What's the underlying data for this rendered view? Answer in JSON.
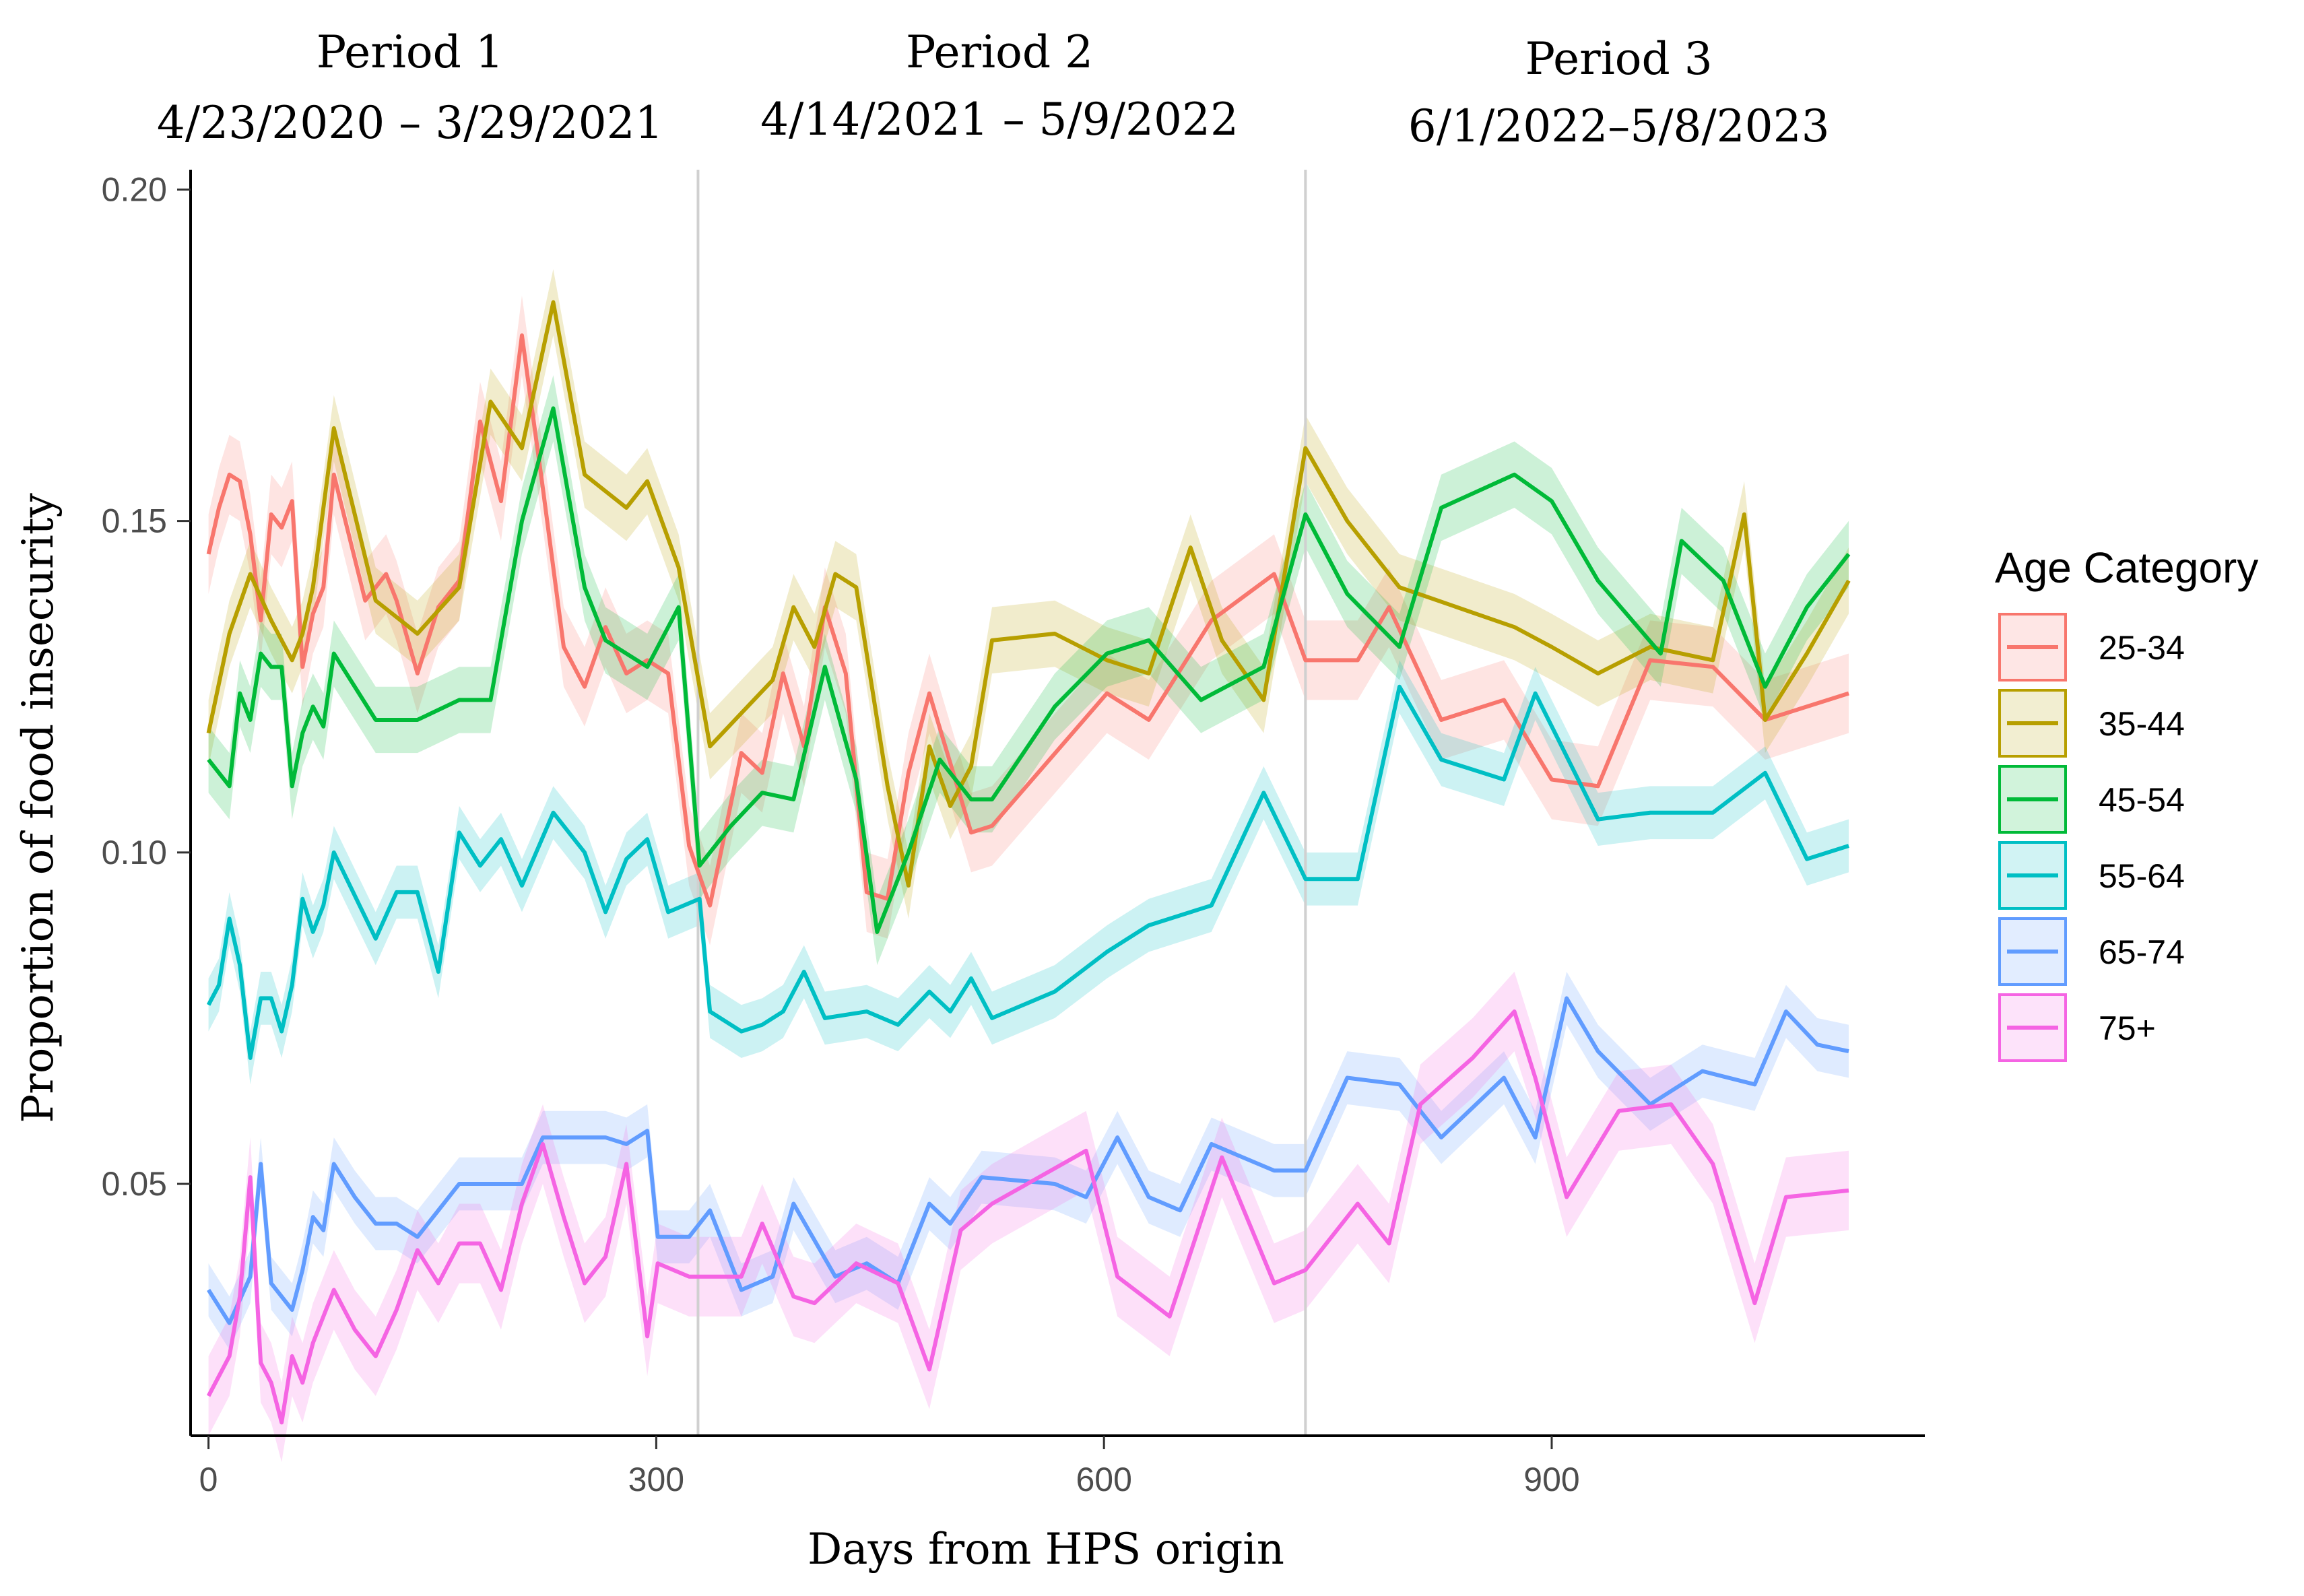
{
  "chart_data": {
    "type": "line",
    "title": "",
    "xlabel": "Days from HPS origin",
    "ylabel": "Proportion of food insecurity",
    "xlim": [
      -12,
      1150
    ],
    "ylim": [
      0.012,
      0.203
    ],
    "x_ticks": [
      0,
      300,
      600,
      900
    ],
    "x_tick_labels": [
      "0",
      "300",
      "600",
      "900"
    ],
    "y_ticks": [
      0.05,
      0.1,
      0.15,
      0.2
    ],
    "y_tick_labels": [
      "0.05",
      "0.10",
      "0.15",
      "0.20"
    ],
    "grid": false,
    "legend_position": "right",
    "legend_title": "Age Category",
    "period_dividers": [
      328,
      735
    ],
    "periods": [
      {
        "label": "Period 1",
        "dates": "4/23/2020 – 3/29/2021",
        "center_x": 135
      },
      {
        "label": "Period 2",
        "dates": "4/14/2021 – 5/9/2022",
        "center_x": 530
      },
      {
        "label": "Period 3",
        "dates": "6/1/2022–5/8/2023",
        "center_x": 945
      }
    ],
    "series": [
      {
        "name": "25-34",
        "color": "#F8766D",
        "band": 0.006,
        "x": [
          0,
          7,
          14,
          21,
          28,
          35,
          42,
          49,
          56,
          63,
          70,
          77,
          84,
          105,
          119,
          126,
          140,
          154,
          168,
          182,
          196,
          210,
          224,
          238,
          252,
          266,
          280,
          294,
          308,
          322,
          336,
          357,
          371,
          385,
          399,
          413,
          427,
          441,
          455,
          469,
          483,
          511,
          525,
          602,
          630,
          672,
          714,
          735,
          770,
          791,
          826,
          868,
          900,
          931,
          966,
          1008,
          1043,
          1099
        ],
        "y": [
          0.145,
          0.152,
          0.157,
          0.156,
          0.148,
          0.135,
          0.151,
          0.149,
          0.153,
          0.128,
          0.136,
          0.14,
          0.157,
          0.138,
          0.142,
          0.138,
          0.127,
          0.137,
          0.141,
          0.165,
          0.153,
          0.178,
          0.155,
          0.131,
          0.125,
          0.134,
          0.127,
          0.129,
          0.127,
          0.101,
          0.092,
          0.115,
          0.112,
          0.127,
          0.116,
          0.137,
          0.127,
          0.094,
          0.093,
          0.112,
          0.124,
          0.103,
          0.104,
          0.124,
          0.12,
          0.135,
          0.142,
          0.129,
          0.129,
          0.137,
          0.12,
          0.123,
          0.111,
          0.11,
          0.129,
          0.128,
          0.12,
          0.124
        ]
      },
      {
        "name": "35-44",
        "color": "#B79F00",
        "band": 0.005,
        "x": [
          0,
          14,
          28,
          42,
          56,
          63,
          70,
          84,
          112,
          140,
          168,
          189,
          210,
          231,
          252,
          280,
          294,
          315,
          336,
          357,
          378,
          392,
          406,
          420,
          434,
          455,
          469,
          483,
          497,
          511,
          525,
          567,
          602,
          630,
          658,
          679,
          707,
          735,
          763,
          798,
          875,
          900,
          931,
          966,
          1008,
          1029,
          1043,
          1071,
          1099
        ],
        "y": [
          0.118,
          0.133,
          0.142,
          0.135,
          0.129,
          0.133,
          0.14,
          0.164,
          0.138,
          0.133,
          0.14,
          0.168,
          0.161,
          0.183,
          0.157,
          0.152,
          0.156,
          0.143,
          0.116,
          0.121,
          0.126,
          0.137,
          0.131,
          0.142,
          0.14,
          0.11,
          0.095,
          0.116,
          0.107,
          0.113,
          0.132,
          0.133,
          0.129,
          0.127,
          0.146,
          0.132,
          0.123,
          0.161,
          0.15,
          0.14,
          0.134,
          0.131,
          0.127,
          0.131,
          0.129,
          0.151,
          0.12,
          0.13,
          0.141
        ]
      },
      {
        "name": "45-54",
        "color": "#00BA38",
        "band": 0.005,
        "x": [
          0,
          14,
          21,
          28,
          35,
          42,
          49,
          56,
          63,
          70,
          77,
          84,
          112,
          140,
          168,
          189,
          210,
          231,
          252,
          266,
          294,
          315,
          329,
          350,
          371,
          392,
          413,
          434,
          448,
          469,
          490,
          511,
          525,
          567,
          602,
          630,
          665,
          707,
          735,
          763,
          798,
          826,
          875,
          900,
          931,
          973,
          987,
          1015,
          1043,
          1071,
          1099
        ],
        "y": [
          0.114,
          0.11,
          0.124,
          0.12,
          0.13,
          0.128,
          0.128,
          0.11,
          0.118,
          0.122,
          0.119,
          0.13,
          0.12,
          0.12,
          0.123,
          0.123,
          0.15,
          0.167,
          0.14,
          0.132,
          0.128,
          0.137,
          0.098,
          0.104,
          0.109,
          0.108,
          0.128,
          0.111,
          0.088,
          0.1,
          0.114,
          0.108,
          0.108,
          0.122,
          0.13,
          0.132,
          0.123,
          0.128,
          0.151,
          0.139,
          0.131,
          0.152,
          0.157,
          0.153,
          0.141,
          0.13,
          0.147,
          0.141,
          0.125,
          0.137,
          0.145
        ]
      },
      {
        "name": "55-64",
        "color": "#00BFC4",
        "band": 0.004,
        "x": [
          0,
          7,
          14,
          21,
          28,
          35,
          42,
          49,
          56,
          63,
          70,
          77,
          84,
          112,
          126,
          140,
          154,
          168,
          182,
          196,
          210,
          231,
          252,
          266,
          280,
          294,
          308,
          329,
          336,
          357,
          371,
          385,
          399,
          413,
          441,
          462,
          483,
          497,
          511,
          525,
          567,
          602,
          630,
          672,
          707,
          735,
          770,
          798,
          826,
          868,
          889,
          931,
          966,
          1008,
          1043,
          1071,
          1099
        ],
        "y": [
          0.077,
          0.08,
          0.09,
          0.083,
          0.069,
          0.078,
          0.078,
          0.073,
          0.08,
          0.093,
          0.088,
          0.092,
          0.1,
          0.087,
          0.094,
          0.094,
          0.082,
          0.103,
          0.098,
          0.102,
          0.095,
          0.106,
          0.1,
          0.091,
          0.099,
          0.102,
          0.091,
          0.093,
          0.076,
          0.073,
          0.074,
          0.076,
          0.082,
          0.075,
          0.076,
          0.074,
          0.079,
          0.076,
          0.081,
          0.075,
          0.079,
          0.085,
          0.089,
          0.092,
          0.109,
          0.096,
          0.096,
          0.125,
          0.114,
          0.111,
          0.124,
          0.105,
          0.106,
          0.106,
          0.112,
          0.099,
          0.101
        ]
      },
      {
        "name": "65-74",
        "color": "#619CFF",
        "band": 0.004,
        "x": [
          0,
          14,
          28,
          35,
          42,
          56,
          63,
          70,
          77,
          84,
          98,
          112,
          126,
          140,
          154,
          168,
          182,
          196,
          210,
          224,
          238,
          252,
          266,
          280,
          294,
          301,
          322,
          336,
          357,
          378,
          392,
          420,
          441,
          462,
          483,
          497,
          518,
          567,
          588,
          609,
          630,
          651,
          672,
          693,
          714,
          735,
          763,
          798,
          826,
          868,
          889,
          910,
          931,
          966,
          1001,
          1036,
          1057,
          1078,
          1099
        ],
        "y": [
          0.034,
          0.029,
          0.036,
          0.053,
          0.035,
          0.031,
          0.037,
          0.045,
          0.043,
          0.053,
          0.048,
          0.044,
          0.044,
          0.042,
          0.046,
          0.05,
          0.05,
          0.05,
          0.05,
          0.057,
          0.057,
          0.057,
          0.057,
          0.056,
          0.058,
          0.042,
          0.042,
          0.046,
          0.034,
          0.036,
          0.047,
          0.036,
          0.038,
          0.035,
          0.047,
          0.044,
          0.051,
          0.05,
          0.048,
          0.057,
          0.048,
          0.046,
          0.056,
          0.054,
          0.052,
          0.052,
          0.066,
          0.065,
          0.057,
          0.066,
          0.057,
          0.078,
          0.07,
          0.062,
          0.067,
          0.065,
          0.076,
          0.071,
          0.07
        ]
      },
      {
        "name": "75+",
        "color": "#F564E3",
        "band": 0.006,
        "x": [
          0,
          14,
          21,
          28,
          35,
          42,
          49,
          56,
          63,
          70,
          84,
          98,
          112,
          126,
          140,
          154,
          168,
          182,
          196,
          210,
          224,
          238,
          252,
          266,
          280,
          294,
          301,
          322,
          336,
          357,
          371,
          392,
          406,
          434,
          462,
          483,
          504,
          525,
          588,
          609,
          644,
          679,
          714,
          735,
          770,
          791,
          812,
          847,
          875,
          889,
          910,
          945,
          980,
          1008,
          1036,
          1057,
          1099
        ],
        "y": [
          0.018,
          0.024,
          0.033,
          0.051,
          0.023,
          0.02,
          0.014,
          0.024,
          0.02,
          0.026,
          0.034,
          0.028,
          0.024,
          0.031,
          0.04,
          0.035,
          0.041,
          0.041,
          0.034,
          0.047,
          0.056,
          0.045,
          0.035,
          0.039,
          0.053,
          0.027,
          0.038,
          0.036,
          0.036,
          0.036,
          0.044,
          0.033,
          0.032,
          0.038,
          0.035,
          0.022,
          0.043,
          0.047,
          0.055,
          0.036,
          0.03,
          0.054,
          0.035,
          0.037,
          0.047,
          0.041,
          0.062,
          0.069,
          0.076,
          0.066,
          0.048,
          0.061,
          0.062,
          0.053,
          0.032,
          0.048,
          0.049
        ]
      }
    ]
  }
}
